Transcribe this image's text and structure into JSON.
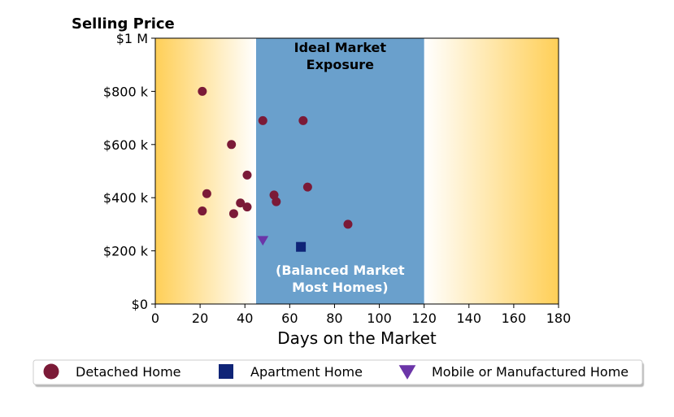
{
  "chart_data": {
    "type": "scatter",
    "title": "Selling Price",
    "xlabel": "Days on the Market",
    "ylabel": "",
    "xlim": [
      0,
      180
    ],
    "ylim": [
      0,
      1000000
    ],
    "x_ticks": [
      0,
      20,
      40,
      60,
      80,
      100,
      120,
      140,
      160,
      180
    ],
    "x_tick_labels": [
      "0",
      "20",
      "40",
      "60",
      "80",
      "100",
      "120",
      "140",
      "160",
      "180"
    ],
    "y_ticks": [
      0,
      200000,
      400000,
      600000,
      800000,
      1000000
    ],
    "y_tick_labels": [
      "$0",
      "$200 k",
      "$400 k",
      "$600 k",
      "$800 k",
      "$1 M"
    ],
    "grid": false,
    "legend_position": "bottom",
    "band": {
      "x_start": 45,
      "x_end": 120,
      "color": "#6aa0cc",
      "label_top_line1": "Ideal Market",
      "label_top_line2": "Exposure",
      "label_bottom_line1": "(Balanced Market",
      "label_bottom_line2": "Most Homes)"
    },
    "background_gradient": {
      "edge_color": "#ffcf57",
      "center_color": "#ffffff"
    },
    "series": [
      {
        "name": "Detached Home",
        "marker": "circle",
        "color": "#7b1a37",
        "points": [
          {
            "x": 21,
            "y": 800000
          },
          {
            "x": 48,
            "y": 690000
          },
          {
            "x": 66,
            "y": 690000
          },
          {
            "x": 34,
            "y": 600000
          },
          {
            "x": 41,
            "y": 485000
          },
          {
            "x": 23,
            "y": 415000
          },
          {
            "x": 53,
            "y": 410000
          },
          {
            "x": 68,
            "y": 440000
          },
          {
            "x": 54,
            "y": 385000
          },
          {
            "x": 38,
            "y": 380000
          },
          {
            "x": 41,
            "y": 365000
          },
          {
            "x": 21,
            "y": 350000
          },
          {
            "x": 35,
            "y": 340000
          },
          {
            "x": 86,
            "y": 300000
          }
        ]
      },
      {
        "name": "Apartment Home",
        "marker": "square",
        "color": "#0f2477",
        "points": [
          {
            "x": 65,
            "y": 215000
          }
        ]
      },
      {
        "name": "Mobile or Manufactured Home",
        "marker": "triangle-down",
        "color": "#6b35a8",
        "points": [
          {
            "x": 48,
            "y": 240000
          }
        ]
      }
    ]
  }
}
